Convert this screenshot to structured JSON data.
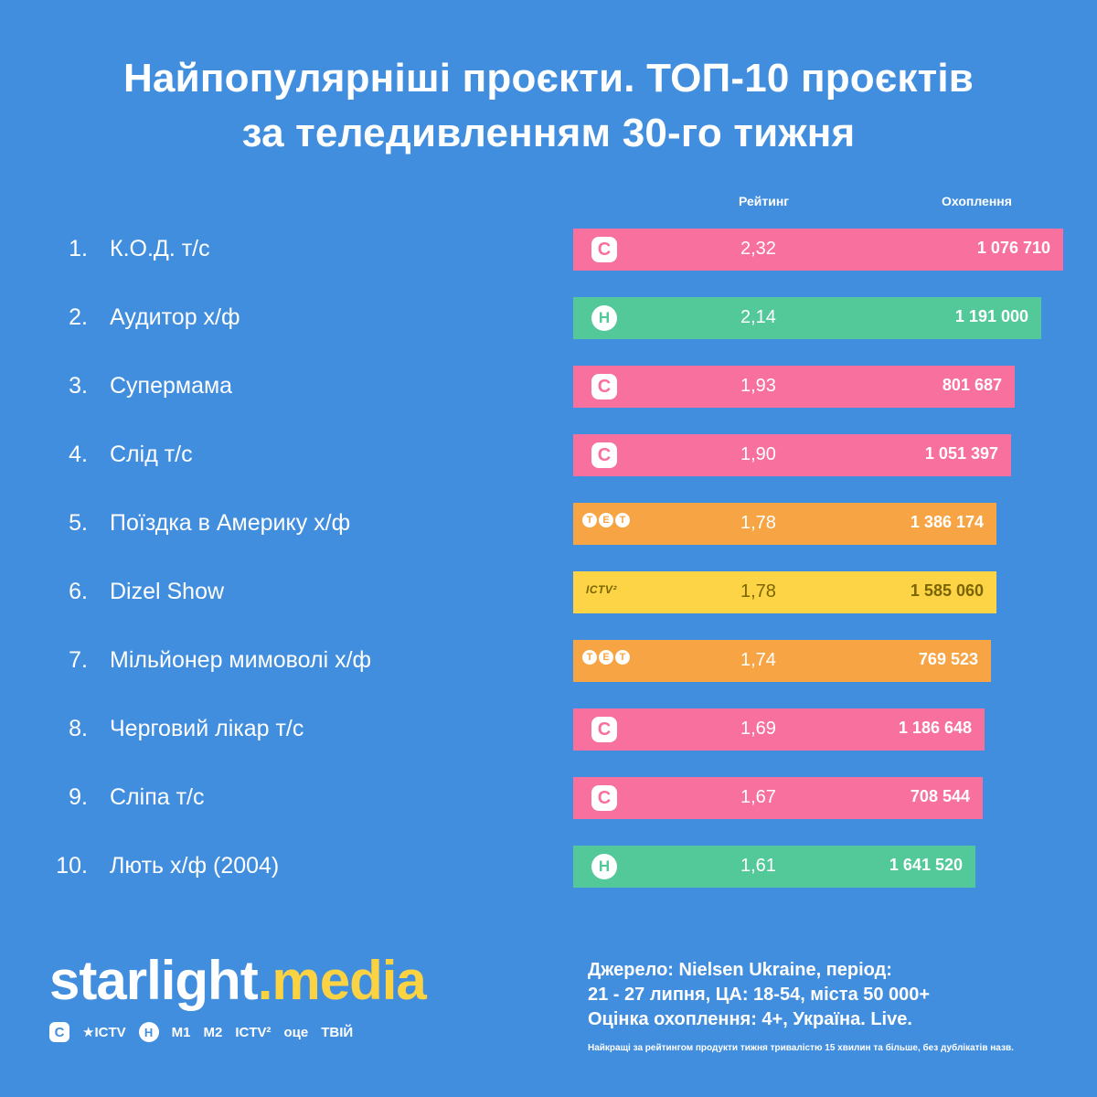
{
  "title": {
    "line1": "Найпопулярніші проєкти. ТОП-10 проєктів",
    "line2": "за теледивленням 30-го тижня"
  },
  "headers": {
    "rating": "Рейтинг",
    "reach": "Охоплення"
  },
  "colors": {
    "background": "#418edf",
    "stb": "#f7709e",
    "novy": "#53c99a",
    "tet": "#f7a544",
    "ictv2": "#fcd445",
    "brand_accent": "#fbd342"
  },
  "chart_data": {
    "type": "bar",
    "orientation": "horizontal",
    "rows": [
      {
        "rank": "1.",
        "name": "К.О.Д. т/с",
        "channel": "stb",
        "logo_text": "С",
        "rating": 2.32,
        "rating_label": "2,32",
        "reach": 1076710,
        "reach_label": "1 076 710"
      },
      {
        "rank": "2.",
        "name": "Аудитор х/ф",
        "channel": "novy",
        "logo_text": "Н",
        "rating": 2.14,
        "rating_label": "2,14",
        "reach": 1191000,
        "reach_label": "1 191 000"
      },
      {
        "rank": "3.",
        "name": "Супермама",
        "channel": "stb",
        "logo_text": "С",
        "rating": 1.93,
        "rating_label": "1,93",
        "reach": 801687,
        "reach_label": "801 687"
      },
      {
        "rank": "4.",
        "name": "Слід т/с",
        "channel": "stb",
        "logo_text": "С",
        "rating": 1.9,
        "rating_label": "1,90",
        "reach": 1051397,
        "reach_label": "1 051 397"
      },
      {
        "rank": "5.",
        "name": "Поїздка в Америку х/ф",
        "channel": "tet",
        "logo_text": "ТЕТ",
        "rating": 1.78,
        "rating_label": "1,78",
        "reach": 1386174,
        "reach_label": "1 386 174"
      },
      {
        "rank": "6.",
        "name": "Dizel Show",
        "channel": "ictv2",
        "logo_text": "ICTV²",
        "rating": 1.78,
        "rating_label": "1,78",
        "reach": 1585060,
        "reach_label": "1 585 060"
      },
      {
        "rank": "7.",
        "name": "Мільйонер мимоволі х/ф",
        "channel": "tet",
        "logo_text": "ТЕТ",
        "rating": 1.74,
        "rating_label": "1,74",
        "reach": 769523,
        "reach_label": "769 523"
      },
      {
        "rank": "8.",
        "name": "Черговий лікар т/с",
        "channel": "stb",
        "logo_text": "С",
        "rating": 1.69,
        "rating_label": "1,69",
        "reach": 1186648,
        "reach_label": "1 186 648"
      },
      {
        "rank": "9.",
        "name": "Сліпа т/с",
        "channel": "stb",
        "logo_text": "С",
        "rating": 1.67,
        "rating_label": "1,67",
        "reach": 708544,
        "reach_label": "708 544"
      },
      {
        "rank": "10.",
        "name": "Лють х/ф (2004)",
        "channel": "novy",
        "logo_text": "Н",
        "rating": 1.61,
        "rating_label": "1,61",
        "reach": 1641520,
        "reach_label": "1 641 520"
      }
    ]
  },
  "footer": {
    "brand_main": "starlight",
    "brand_dot": ".",
    "brand_accent": "media",
    "channel_icons": [
      {
        "icon": "stb-icon",
        "text": "С"
      },
      {
        "icon": "ictv-icon",
        "text": "★ICTV"
      },
      {
        "icon": "novy-icon",
        "text": "Н"
      },
      {
        "icon": "m1-icon",
        "text": "M1"
      },
      {
        "icon": "m2-icon",
        "text": "M2"
      },
      {
        "icon": "ictv2-icon",
        "text": "ICTV²"
      },
      {
        "icon": "oce-icon",
        "text": "оце"
      },
      {
        "icon": "tviy-icon",
        "text": "ТВІЙ"
      }
    ],
    "source_line1": "Джерело: Nielsen Ukraine, період:",
    "source_line2": "21 - 27 липня, ЦА: 18-54, міста 50 000+",
    "source_line3": "Оцінка охоплення: 4+, Україна. Live.",
    "footnote": "Найкращі за рейтингом продукти тижня тривалістю 15 хвилин та більше, без дублікатів назв."
  }
}
